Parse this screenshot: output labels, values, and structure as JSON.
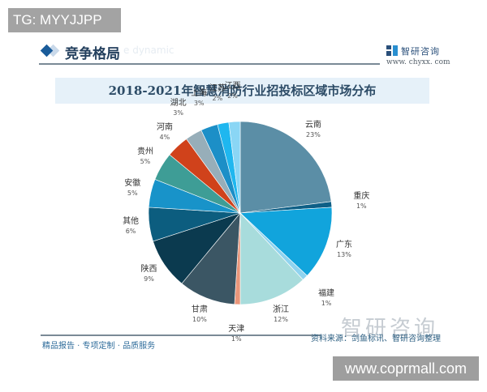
{
  "overlay": {
    "top_badge": "TG: MYYJJPP",
    "bottom_badge": "www.coprmall.com"
  },
  "header": {
    "section_title": "竞争格局",
    "section_ghost": "e dynamic",
    "logo_text": "智研咨询",
    "logo_url": "www. chyxx. com"
  },
  "footer": {
    "tagline": "精品报告 · 专项定制 · 品质服务",
    "watermark": "智研咨询",
    "source": "资料来源：剑鱼标讯、智研咨询整理"
  },
  "chart_data": {
    "type": "pie",
    "title": "2018-2021年智慧消防行业招投标区域市场分布",
    "start_angle": "12 o'clock",
    "direction": "clockwise",
    "unit": "%",
    "categories": [
      "云南",
      "重庆",
      "广东",
      "福建",
      "浙江",
      "天津",
      "甘肃",
      "陕西",
      "其他",
      "安徽",
      "贵州",
      "河南",
      "湖北",
      "上海",
      "江苏",
      "江西"
    ],
    "values": [
      23,
      1,
      13,
      1,
      12,
      1,
      10,
      9,
      6,
      5,
      5,
      4,
      3,
      3,
      2,
      2
    ],
    "labels": [
      "23%",
      "1%",
      "13%",
      "1%",
      "12%",
      "1%",
      "10%",
      "9%",
      "6%",
      "5%",
      "5%",
      "4%",
      "3%",
      "3%",
      "2%",
      "2%"
    ],
    "colors": [
      "#5b8ea6",
      "#0e5f86",
      "#11a4dc",
      "#8fd3ef",
      "#a8dcdc",
      "#e9967a",
      "#3b5664",
      "#0b3a4f",
      "#0c5d7f",
      "#1893c9",
      "#3e9d96",
      "#d0421b",
      "#97aeb9",
      "#1c8fc7",
      "#1fb7ef",
      "#8ad6f5"
    ],
    "legend": "none",
    "data_labels": "outside"
  }
}
